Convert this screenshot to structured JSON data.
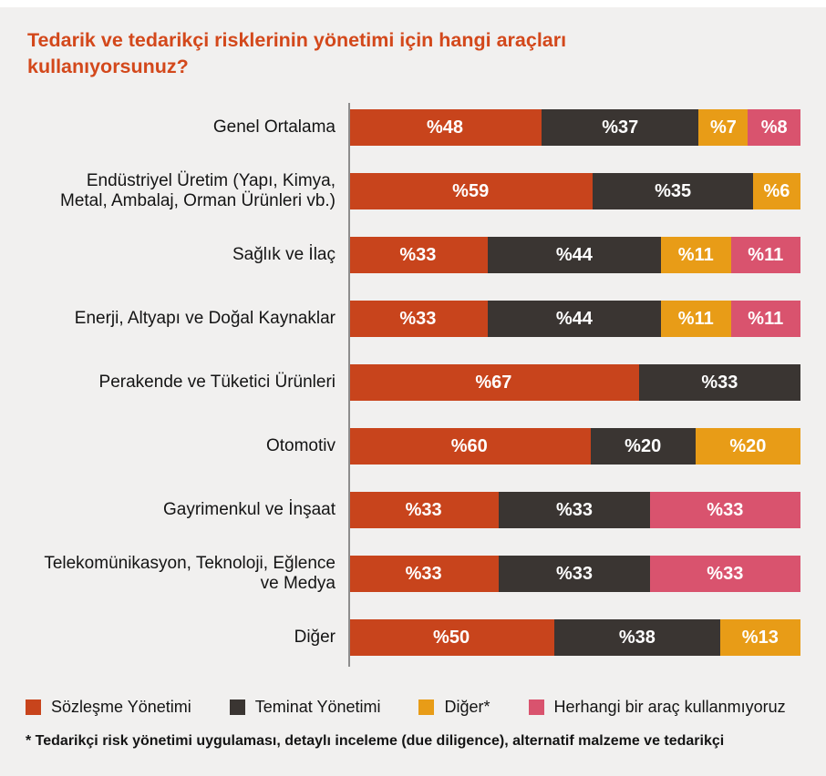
{
  "page": {
    "background": "#f1f0ef",
    "title_color": "#d3481b",
    "title_lines": [
      "Tedarik ve tedarikçi risklerinin yönetimi için hangi araçları",
      "kullanıyorsunuz?"
    ]
  },
  "chart_data": {
    "type": "bar",
    "orientation": "horizontal",
    "stacked": true,
    "title": "Tedarik ve tedarikçi risklerinin yönetimi için hangi araçları kullanıyorsunuz?",
    "value_prefix": "%",
    "xlim": [
      0,
      100
    ],
    "grid": false,
    "legend_position": "bottom",
    "categories": [
      "Genel Ortalama",
      "Endüstriyel Üretim (Yapı, Kimya, Metal, Ambalaj, Orman Ürünleri vb.)",
      "Sağlık ve İlaç",
      "Enerji, Altyapı ve Doğal Kaynaklar",
      "Perakende ve Tüketici Ürünleri",
      "Otomotiv",
      "Gayrimenkul ve İnşaat",
      "Telekomünikasyon, Teknoloji, Eğlence ve Medya",
      "Diğer"
    ],
    "series": [
      {
        "name": "Sözleşme Yönetimi",
        "color": "#c8441c",
        "values": [
          48,
          59,
          33,
          33,
          67,
          60,
          33,
          33,
          50
        ]
      },
      {
        "name": "Teminat Yönetimi",
        "color": "#3a3532",
        "values": [
          37,
          35,
          44,
          44,
          33,
          20,
          33,
          33,
          38
        ]
      },
      {
        "name": "Diğer*",
        "color": "#e89c17",
        "values": [
          7,
          6,
          11,
          11,
          0,
          20,
          0,
          0,
          13
        ]
      },
      {
        "name": "Herhangi bir araç kullanmıyoruz",
        "color": "#d9536e",
        "values": [
          8,
          0,
          11,
          11,
          0,
          0,
          33,
          33,
          0
        ]
      }
    ],
    "footnote": "* Tedarikçi risk yönetimi uygulaması, detaylı inceleme (due diligence), alternatif malzeme ve tedarikçi"
  }
}
